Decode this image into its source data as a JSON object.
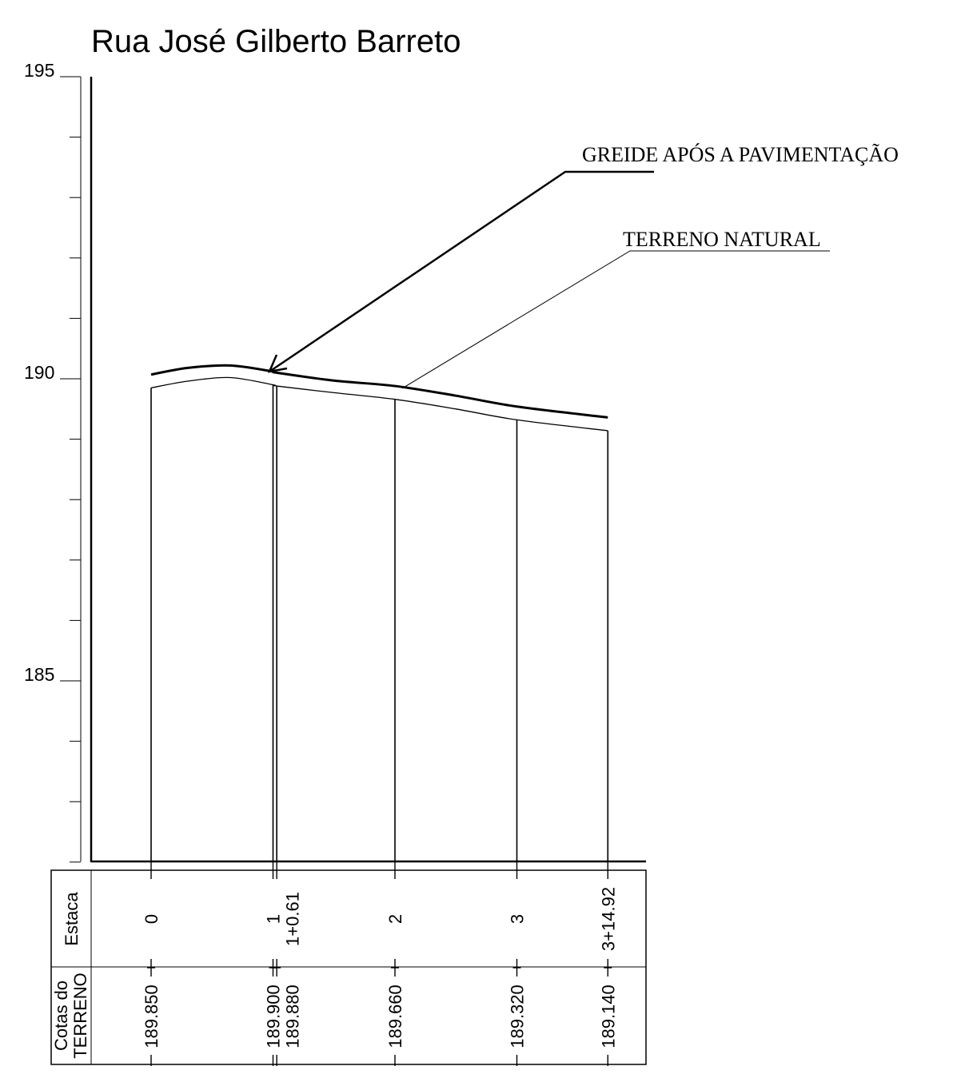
{
  "chart_data": {
    "type": "line",
    "title": "Rua José Gilberto Barreto",
    "y_ticks": [
      "195",
      "190",
      "185"
    ],
    "ylim": [
      181.9,
      195
    ],
    "xlim": [
      -1,
      4.9
    ],
    "grid": false,
    "stations": [
      {
        "x": 0,
        "label": "0",
        "sub": "",
        "cota": "189.850",
        "elev": 189.85
      },
      {
        "x": 1,
        "label": "1",
        "sub": "",
        "cota": "189.900",
        "elev": 189.9
      },
      {
        "x": 1.0305,
        "label": "",
        "sub": "1+0.61",
        "cota": "189.880",
        "elev": 189.88
      },
      {
        "x": 2,
        "label": "2",
        "sub": "",
        "cota": "189.660",
        "elev": 189.66
      },
      {
        "x": 3,
        "label": "3",
        "sub": "",
        "cota": "189.320",
        "elev": 189.32
      },
      {
        "x": 3.746,
        "label": "",
        "sub": "3+14.92",
        "cota": "189.140",
        "elev": 189.14
      }
    ],
    "series": [
      {
        "name": "TERRENO NATURAL",
        "x": [
          0,
          0.3,
          0.65,
          1,
          1.0305,
          1.5,
          2,
          2.5,
          3,
          3.746
        ],
        "y": [
          189.85,
          189.96,
          190.02,
          189.9,
          189.88,
          189.77,
          189.66,
          189.5,
          189.32,
          189.14
        ]
      },
      {
        "name": "GREIDE APÓS A PAVIMENTAÇÃO",
        "x": [
          0,
          0.3,
          0.65,
          1,
          1.0305,
          1.5,
          2,
          2.5,
          3,
          3.746
        ],
        "y": [
          190.07,
          190.18,
          190.22,
          190.12,
          190.1,
          189.97,
          189.88,
          189.72,
          189.54,
          189.36
        ]
      }
    ],
    "annotations": {
      "greide": "GREIDE APÓS A PAVIMENTAÇÃO",
      "terreno": "TERRENO NATURAL"
    },
    "table": {
      "row1_label": "Estaca",
      "row2_label_line1": "Cotas do",
      "row2_label_line2": "TERRENO"
    }
  }
}
